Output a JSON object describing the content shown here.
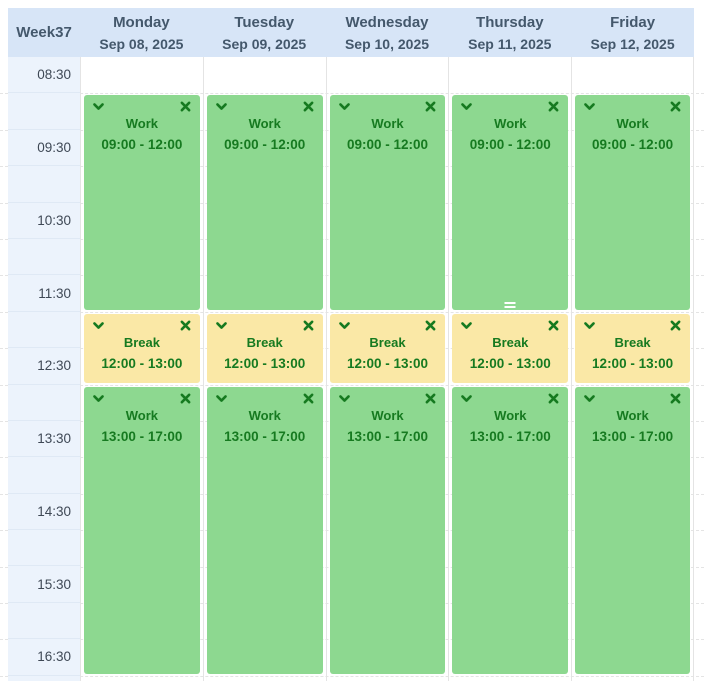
{
  "week_label": "Week37",
  "header": {
    "days": [
      {
        "name": "Monday",
        "date": "Sep 08, 2025"
      },
      {
        "name": "Tuesday",
        "date": "Sep 09, 2025"
      },
      {
        "name": "Wednesday",
        "date": "Sep 10, 2025"
      },
      {
        "name": "Thursday",
        "date": "Sep 11, 2025"
      },
      {
        "name": "Friday",
        "date": "Sep 12, 2025"
      }
    ]
  },
  "time_labels": [
    "08:30",
    "09:30",
    "10:30",
    "11:30",
    "12:30",
    "13:30",
    "14:30",
    "15:30",
    "16:30"
  ],
  "grid": {
    "start_time": "08:30",
    "slot_minutes": 30
  },
  "day_events": [
    [
      {
        "type": "work",
        "title": "Work",
        "start": "09:00",
        "end": "12:00",
        "time_label": "09:00 - 12:00"
      },
      {
        "type": "break",
        "title": "Break",
        "start": "12:00",
        "end": "13:00",
        "time_label": "12:00 - 13:00"
      },
      {
        "type": "work",
        "title": "Work",
        "start": "13:00",
        "end": "17:00",
        "time_label": "13:00 - 17:00"
      }
    ],
    [
      {
        "type": "work",
        "title": "Work",
        "start": "09:00",
        "end": "12:00",
        "time_label": "09:00 - 12:00"
      },
      {
        "type": "break",
        "title": "Break",
        "start": "12:00",
        "end": "13:00",
        "time_label": "12:00 - 13:00"
      },
      {
        "type": "work",
        "title": "Work",
        "start": "13:00",
        "end": "17:00",
        "time_label": "13:00 - 17:00"
      }
    ],
    [
      {
        "type": "work",
        "title": "Work",
        "start": "09:00",
        "end": "12:00",
        "time_label": "09:00 - 12:00"
      },
      {
        "type": "break",
        "title": "Break",
        "start": "12:00",
        "end": "13:00",
        "time_label": "12:00 - 13:00"
      },
      {
        "type": "work",
        "title": "Work",
        "start": "13:00",
        "end": "17:00",
        "time_label": "13:00 - 17:00"
      }
    ],
    [
      {
        "type": "work",
        "title": "Work",
        "start": "09:00",
        "end": "12:00",
        "time_label": "09:00 - 12:00"
      },
      {
        "type": "break",
        "title": "Break",
        "start": "12:00",
        "end": "13:00",
        "time_label": "12:00 - 13:00"
      },
      {
        "type": "work",
        "title": "Work",
        "start": "13:00",
        "end": "17:00",
        "time_label": "13:00 - 17:00"
      }
    ],
    [
      {
        "type": "work",
        "title": "Work",
        "start": "09:00",
        "end": "12:00",
        "time_label": "09:00 - 12:00"
      },
      {
        "type": "break",
        "title": "Break",
        "start": "12:00",
        "end": "13:00",
        "time_label": "12:00 - 13:00"
      },
      {
        "type": "work",
        "title": "Work",
        "start": "13:00",
        "end": "17:00",
        "time_label": "13:00 - 17:00"
      }
    ]
  ],
  "hover": {
    "resize_handle": {
      "day_index": 3,
      "event_index": 0
    }
  },
  "colors": {
    "header_bg": "#d7e5f7",
    "header_text": "#44586c",
    "time_col_bg": "#ecf3fc",
    "time_text": "#3e4855",
    "work_event_bg": "#8dd890",
    "break_event_bg": "#fae8a6",
    "event_text": "#167a20"
  }
}
